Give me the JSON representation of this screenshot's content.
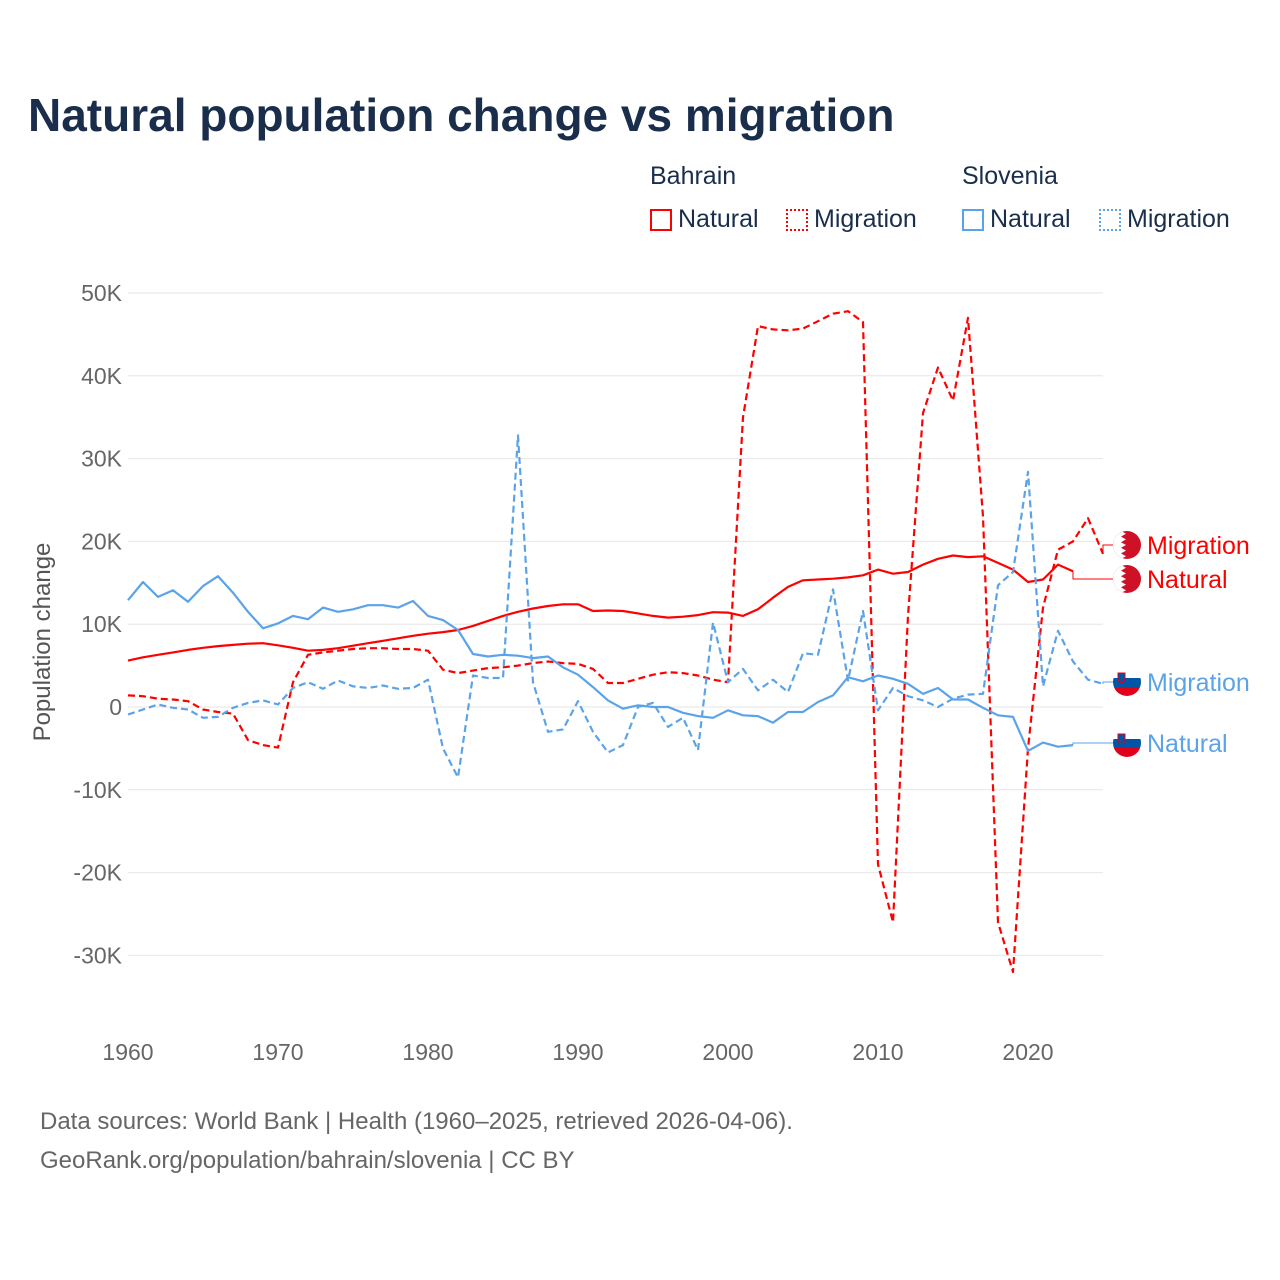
{
  "title": "Natural population change vs migration",
  "legend": {
    "groups": [
      {
        "name": "Bahrain",
        "color": "#ff0000",
        "items": [
          "Natural",
          "Migration"
        ]
      },
      {
        "name": "Slovenia",
        "color": "#5ba3e8",
        "items": [
          "Natural",
          "Migration"
        ]
      }
    ]
  },
  "footer": {
    "line1": "Data sources: World Bank | Health (1960–2025, retrieved 2026-04-06).",
    "line2": "GeoRank.org/population/bahrain/slovenia | CC BY"
  },
  "chart_data": {
    "type": "line",
    "title": "Natural population change vs migration",
    "xlabel": "",
    "ylabel": "Population change",
    "xlim": [
      1960,
      2025
    ],
    "ylim": [
      -35000,
      50000
    ],
    "yticks": [
      50000,
      40000,
      30000,
      20000,
      10000,
      0,
      -10000,
      -20000,
      -30000
    ],
    "ytick_labels": [
      "50K",
      "40K",
      "30K",
      "20K",
      "10K",
      "0",
      "-10K",
      "-20K",
      "-30K"
    ],
    "xticks": [
      1960,
      1970,
      1980,
      1990,
      2000,
      2010,
      2020
    ],
    "xtick_labels": [
      "1960",
      "1970",
      "1980",
      "1990",
      "2000",
      "2010",
      "2020"
    ],
    "grid": true,
    "legend_position": "top-right",
    "series": [
      {
        "name": "Bahrain Natural",
        "label": "Natural",
        "country": "Bahrain",
        "color": "#ff0000",
        "dash": false,
        "start": 1960,
        "values": [
          5600,
          6000,
          6300,
          6600,
          6900,
          7150,
          7350,
          7500,
          7650,
          7700,
          7450,
          7150,
          6800,
          6900,
          7100,
          7400,
          7700,
          8000,
          8300,
          8600,
          8850,
          9050,
          9300,
          9800,
          10400,
          11000,
          11500,
          11900,
          12200,
          12400,
          12400,
          11600,
          11650,
          11600,
          11300,
          11000,
          10800,
          10900,
          11100,
          11450,
          11400,
          11000,
          11800,
          13200,
          14500,
          15300,
          15400,
          15500,
          15650,
          15900,
          16600,
          16100,
          16300,
          17200,
          17900,
          18300,
          18100,
          18200,
          17400,
          16600,
          15100,
          15400,
          17200,
          16400
        ]
      },
      {
        "name": "Bahrain Migration",
        "label": "Migration",
        "country": "Bahrain",
        "color": "#ff0000",
        "dash": true,
        "start": 1960,
        "values": [
          1400,
          1300,
          1000,
          900,
          700,
          -300,
          -600,
          -800,
          -4000,
          -4600,
          -4900,
          3000,
          6300,
          6600,
          6800,
          7000,
          7100,
          7100,
          7000,
          7000,
          6800,
          4500,
          4100,
          4400,
          4700,
          4800,
          5000,
          5300,
          5500,
          5300,
          5200,
          4600,
          2900,
          2900,
          3400,
          3900,
          4200,
          4100,
          3800,
          3300,
          3000,
          35000,
          46000,
          45600,
          45500,
          45700,
          46600,
          47500,
          47800,
          46500,
          -19000,
          -26000,
          11000,
          35500,
          41000,
          37000,
          47000,
          23000,
          -26000,
          -32000,
          -5000,
          12000,
          19000,
          20000,
          22800,
          18500
        ]
      },
      {
        "name": "Slovenia Natural",
        "label": "Natural",
        "country": "Slovenia",
        "color": "#5ba3e8",
        "dash": false,
        "start": 1960,
        "values": [
          12900,
          15100,
          13300,
          14100,
          12700,
          14600,
          15800,
          13800,
          11500,
          9500,
          10100,
          11000,
          10600,
          12000,
          11500,
          11800,
          12300,
          12300,
          12000,
          12800,
          11000,
          10500,
          9300,
          6400,
          6100,
          6300,
          6200,
          5900,
          6100,
          4800,
          3900,
          2400,
          800,
          -200,
          200,
          0,
          0,
          -700,
          -1100,
          -1300,
          -400,
          -1000,
          -1100,
          -1900,
          -600,
          -600,
          600,
          1400,
          3600,
          3100,
          3800,
          3400,
          2800,
          1600,
          2300,
          900,
          900,
          -100,
          -1000,
          -1200,
          -5300,
          -4300,
          -4800,
          -4600
        ]
      },
      {
        "name": "Slovenia Migration",
        "label": "Migration",
        "country": "Slovenia",
        "color": "#5ba3e8",
        "dash": true,
        "start": 1960,
        "values": [
          -900,
          -300,
          300,
          -100,
          -300,
          -1300,
          -1200,
          -100,
          500,
          800,
          300,
          2300,
          3000,
          2200,
          3200,
          2500,
          2300,
          2600,
          2200,
          2300,
          3300,
          -5000,
          -8500,
          3800,
          3500,
          3500,
          32800,
          3000,
          -3000,
          -2700,
          700,
          -3000,
          -5500,
          -4600,
          0,
          500,
          -2400,
          -1300,
          -5200,
          10200,
          3000,
          4600,
          2000,
          3300,
          1800,
          6500,
          6300,
          14200,
          3200,
          11600,
          -400,
          2300,
          1300,
          800,
          0,
          1000,
          1500,
          1600,
          14700,
          16300,
          28400,
          2500,
          9200,
          5500,
          3300,
          2800
        ]
      }
    ],
    "end_labels": [
      {
        "series": "Bahrain Migration",
        "text": "Migration",
        "flag": "bahrain-flag"
      },
      {
        "series": "Bahrain Natural",
        "text": "Natural",
        "flag": "bahrain-flag"
      },
      {
        "series": "Slovenia Migration",
        "text": "Migration",
        "flag": "slovenia-flag"
      },
      {
        "series": "Slovenia Natural",
        "text": "Natural",
        "flag": "slovenia-flag"
      }
    ]
  }
}
